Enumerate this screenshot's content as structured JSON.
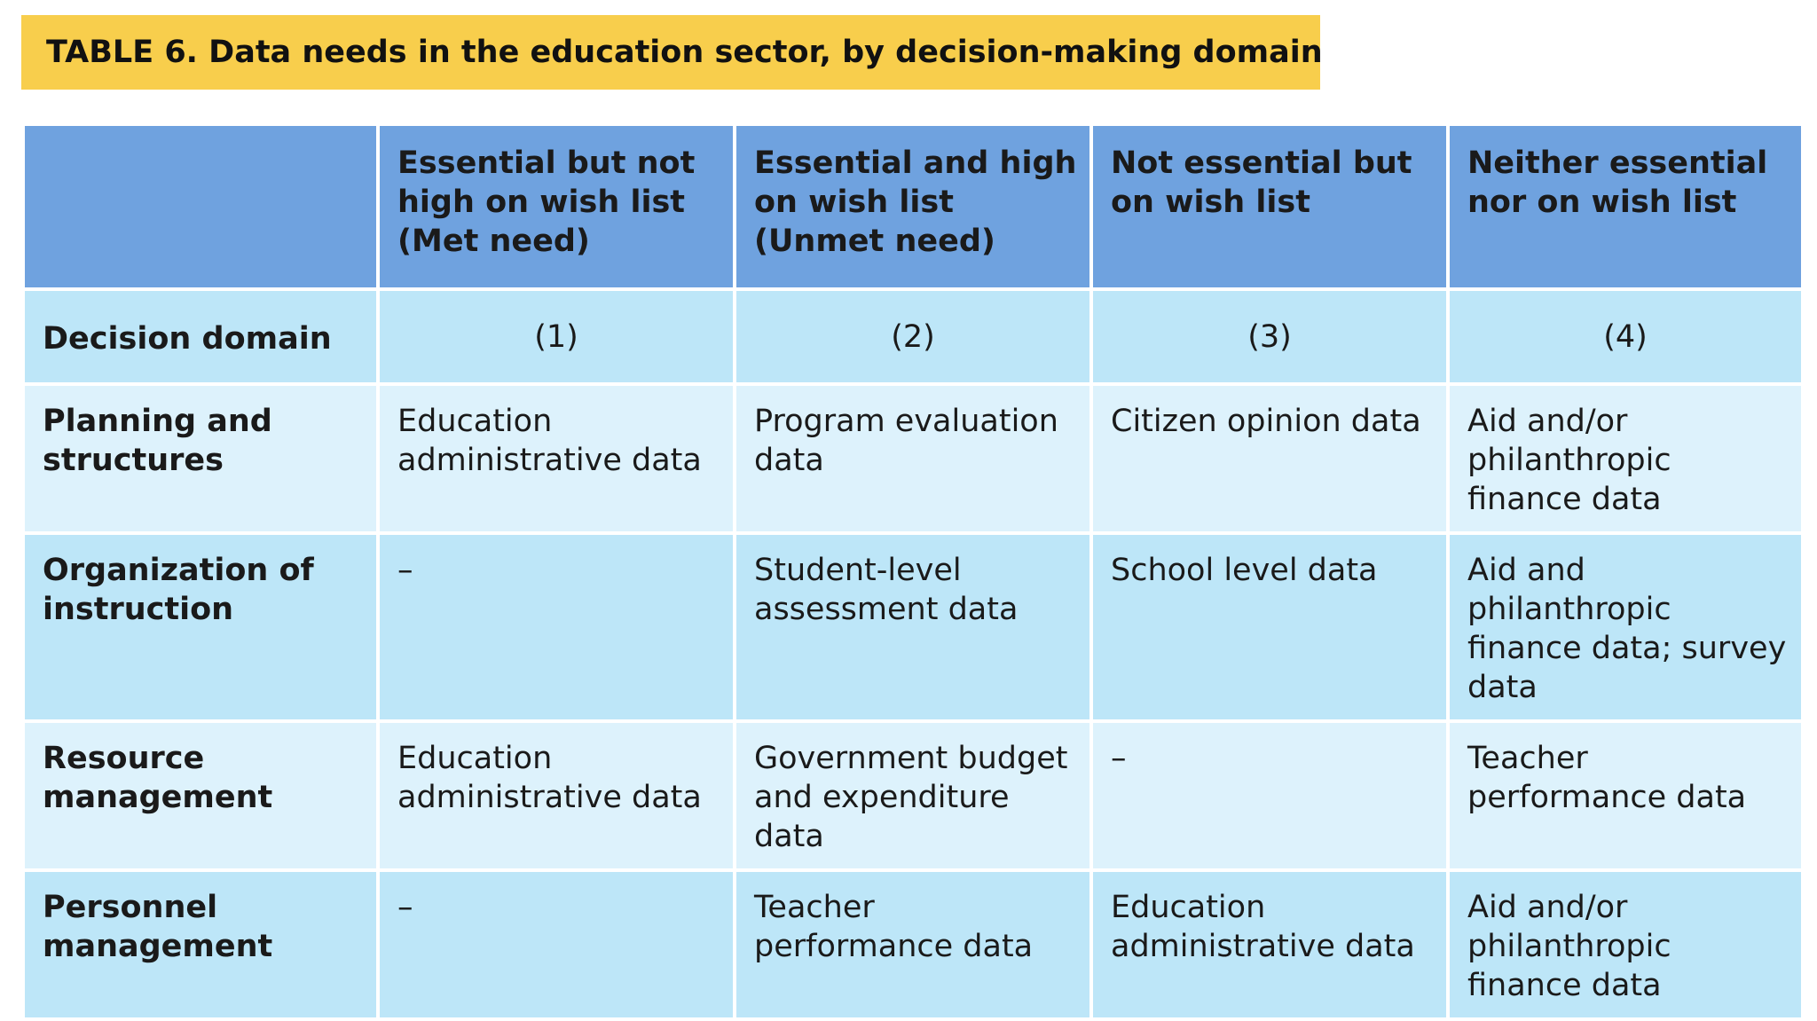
{
  "title": "TABLE 6. Data needs in the education sector, by decision-making domain",
  "table": {
    "headers": [
      "",
      "Essential but not high on wish list (Met need)",
      "Essential and high on wish list (Unmet need)",
      "Not essential but on wish list",
      "Neither essential nor on wish list"
    ],
    "index_row": {
      "label": "Decision domain",
      "values": [
        "(1)",
        "(2)",
        "(3)",
        "(4)"
      ]
    },
    "rows": [
      {
        "label": "Planning and structures",
        "cells": [
          "Education administrative data",
          "Program evaluation data",
          "Citizen opinion data",
          "Aid and/or philanthropic finance data"
        ]
      },
      {
        "label": "Organization of instruction",
        "cells": [
          "–",
          "Student-level assessment data",
          "School level data",
          "Aid and philanthropic finance data; survey data"
        ]
      },
      {
        "label": "Resource management",
        "cells": [
          "Education administrative data",
          "Government budget and expenditure data",
          "–",
          "Teacher performance data"
        ]
      },
      {
        "label": "Personnel management",
        "cells": [
          "–",
          "Teacher performance data",
          "Education administrative data",
          "Aid and/or philanthropic finance data"
        ]
      }
    ]
  },
  "colors": {
    "title_bar": "#F8CE4C",
    "header_bg": "#6FA2DF",
    "row_dark": "#BDE6F8",
    "row_light": "#DDF2FC"
  }
}
